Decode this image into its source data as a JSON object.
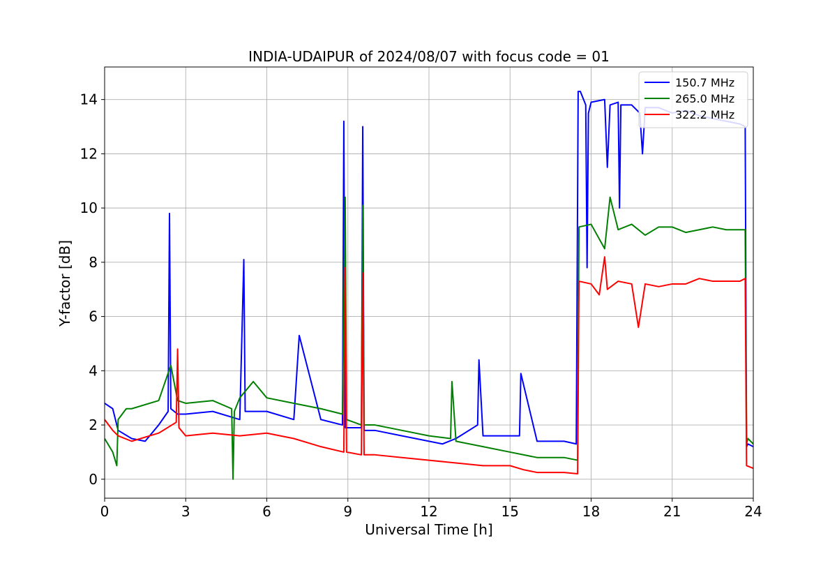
{
  "chart_data": {
    "type": "line",
    "title": "INDIA-UDAIPUR of 2024/08/07 with focus code = 01",
    "xlabel": "Universal Time [h]",
    "ylabel": "Y-factor [dB]",
    "xlim": [
      0,
      24
    ],
    "ylim": [
      -0.7,
      15.2
    ],
    "xticks": [
      0,
      3,
      6,
      9,
      12,
      15,
      18,
      21,
      24
    ],
    "yticks": [
      0,
      2,
      4,
      6,
      8,
      10,
      12,
      14
    ],
    "grid": true,
    "legend_position": "top-right",
    "series": [
      {
        "name": " 150.7 MHz",
        "color": "#0000ff",
        "x": [
          0,
          0.3,
          0.5,
          1,
          1.5,
          2,
          2.35,
          2.4,
          2.45,
          2.7,
          3,
          4,
          5,
          5.15,
          5.2,
          6,
          7,
          7.2,
          8,
          8.8,
          8.85,
          8.9,
          9.5,
          9.55,
          9.6,
          10,
          11,
          12,
          12.5,
          13,
          13.8,
          13.85,
          14,
          15,
          15.35,
          15.4,
          16,
          17,
          17.45,
          17.52,
          17.6,
          17.8,
          17.85,
          17.9,
          18,
          18.5,
          18.6,
          18.7,
          19,
          19.05,
          19.1,
          19.5,
          19.8,
          19.9,
          20,
          20.5,
          21,
          21.5,
          22,
          22.5,
          23,
          23.5,
          23.7,
          23.75,
          23.8,
          24
        ],
        "y": [
          2.8,
          2.6,
          1.8,
          1.5,
          1.4,
          2.0,
          2.5,
          9.8,
          2.6,
          2.4,
          2.4,
          2.5,
          2.2,
          8.1,
          2.5,
          2.5,
          2.2,
          5.3,
          2.2,
          2.0,
          13.2,
          1.9,
          1.9,
          13.0,
          1.8,
          1.8,
          1.6,
          1.4,
          1.3,
          1.5,
          2.0,
          4.4,
          1.6,
          1.6,
          1.6,
          3.9,
          1.4,
          1.4,
          1.3,
          14.3,
          14.3,
          13.8,
          7.8,
          13.5,
          13.9,
          14.0,
          11.5,
          13.8,
          13.9,
          10.0,
          13.8,
          13.8,
          13.5,
          12.0,
          13.7,
          13.7,
          13.5,
          13.6,
          13.4,
          13.3,
          13.2,
          13.1,
          13.0,
          1.2,
          1.3,
          1.2
        ]
      },
      {
        "name": " 265.0 MHz",
        "color": "#008000",
        "x": [
          0,
          0.3,
          0.45,
          0.5,
          0.8,
          1,
          2,
          2.45,
          2.7,
          3,
          4,
          4.7,
          4.75,
          4.8,
          5,
          5.5,
          6,
          7,
          8,
          8.8,
          8.9,
          8.95,
          9.5,
          9.55,
          9.6,
          10,
          11,
          12,
          12.8,
          12.85,
          13,
          14,
          15,
          16,
          17,
          17.5,
          17.55,
          18,
          18.5,
          18.7,
          19,
          19.5,
          20,
          20.5,
          21,
          21.5,
          22,
          22.5,
          23,
          23.5,
          23.7,
          23.75,
          23.8,
          24
        ],
        "y": [
          1.5,
          1.0,
          0.5,
          2.2,
          2.6,
          2.6,
          2.9,
          4.2,
          2.9,
          2.8,
          2.9,
          2.6,
          0.0,
          2.5,
          3.0,
          3.6,
          3.0,
          2.8,
          2.6,
          2.4,
          10.4,
          2.2,
          2.0,
          10.1,
          2.0,
          2.0,
          1.8,
          1.6,
          1.5,
          3.6,
          1.4,
          1.2,
          1.0,
          0.8,
          0.8,
          0.7,
          9.3,
          9.4,
          8.5,
          10.4,
          9.2,
          9.4,
          9.0,
          9.3,
          9.3,
          9.1,
          9.2,
          9.3,
          9.2,
          9.2,
          9.2,
          1.3,
          1.5,
          1.3
        ]
      },
      {
        "name": " 322.2 MHz",
        "color": "#ff0000",
        "x": [
          0,
          0.3,
          0.5,
          1,
          2,
          2.65,
          2.7,
          2.75,
          3,
          4,
          5,
          6,
          7,
          8,
          8.85,
          8.9,
          8.95,
          9.5,
          9.55,
          9.6,
          10,
          11,
          12,
          13,
          14,
          15,
          15.5,
          16,
          16.5,
          17,
          17.5,
          17.55,
          18,
          18.3,
          18.5,
          18.6,
          19,
          19.5,
          19.75,
          20,
          20.5,
          21,
          21.5,
          22,
          22.5,
          23,
          23.5,
          23.7,
          23.75,
          24
        ],
        "y": [
          2.2,
          1.8,
          1.6,
          1.4,
          1.7,
          2.1,
          4.8,
          1.9,
          1.6,
          1.7,
          1.6,
          1.7,
          1.5,
          1.2,
          1.0,
          7.8,
          1.0,
          0.9,
          7.6,
          0.9,
          0.9,
          0.8,
          0.7,
          0.6,
          0.5,
          0.5,
          0.35,
          0.25,
          0.25,
          0.25,
          0.2,
          7.3,
          7.2,
          6.8,
          8.2,
          7.0,
          7.3,
          7.2,
          5.6,
          7.2,
          7.1,
          7.2,
          7.2,
          7.4,
          7.3,
          7.3,
          7.3,
          7.4,
          0.5,
          0.4
        ]
      }
    ]
  }
}
